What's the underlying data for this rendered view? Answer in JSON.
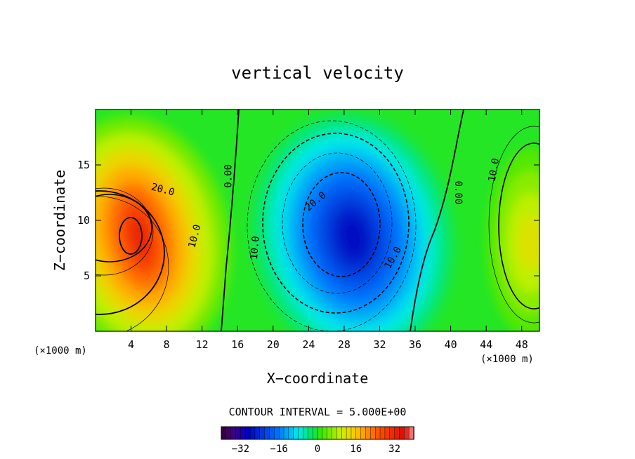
{
  "chart_data": {
    "type": "heatmap",
    "title": "vertical velocity",
    "xlabel": "X−coordinate",
    "ylabel": "Z−coordinate",
    "x_unit": "(×1000 m)",
    "x_unit_right": "(×1000 m)",
    "xlim": [
      0,
      50
    ],
    "ylim": [
      0,
      20
    ],
    "x_ticks": [
      4,
      8,
      12,
      16,
      20,
      24,
      28,
      32,
      36,
      40,
      44,
      48
    ],
    "y_ticks": [
      5,
      10,
      15
    ],
    "contour_interval_text": "CONTOUR INTERVAL = 5.000E+00",
    "contour_labels": [
      "20.0",
      "10.0",
      "0.00",
      "10.0",
      "20.0",
      "10.0",
      "0.00",
      "10.0"
    ],
    "colorbar": {
      "min": -40,
      "max": 40,
      "ticks": [
        -32,
        -16,
        0,
        16,
        32
      ]
    },
    "series": [
      {
        "center_x": 5,
        "center_z": 8.5,
        "peak": 32
      },
      {
        "center_x": 29,
        "center_z": 8.5,
        "peak": -28
      },
      {
        "center_x": 49,
        "center_z": 8,
        "peak": 12
      }
    ]
  }
}
